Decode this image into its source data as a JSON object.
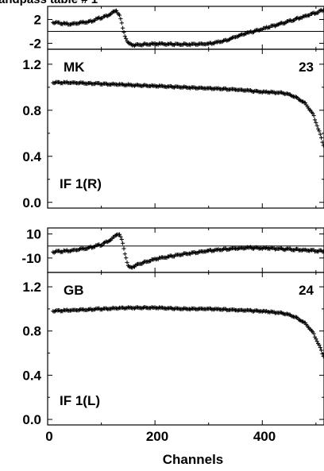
{
  "title": "andpass table # 1",
  "xlabel": "Channels",
  "x_ticks": [
    "0",
    "200",
    "400"
  ],
  "chart_data": [
    {
      "type": "scatter",
      "role": "phase",
      "xlim": [
        0,
        515
      ],
      "ylim": [
        -3,
        4.2
      ],
      "yticks": [
        {
          "value": 2,
          "label": "2"
        },
        {
          "value": -2,
          "label": "-2"
        }
      ],
      "zero_line": 0,
      "series": [
        {
          "x": [
            10,
            40,
            80,
            110,
            128,
            135,
            140,
            145,
            150,
            160,
            200,
            250,
            300,
            330,
            360,
            400,
            450,
            500,
            515
          ],
          "y": [
            1.5,
            1.2,
            1.7,
            2.6,
            3.5,
            2.5,
            0.5,
            -1.0,
            -2.0,
            -2.3,
            -2.1,
            -2.2,
            -2.1,
            -1.6,
            -0.6,
            0.4,
            1.7,
            3.1,
            3.6
          ]
        }
      ]
    },
    {
      "type": "scatter",
      "role": "amplitude",
      "xlim": [
        0,
        515
      ],
      "ylim": [
        -0.05,
        1.33
      ],
      "yticks": [
        {
          "value": 1.2,
          "label": "1.2"
        },
        {
          "value": 0.8,
          "label": "0.8"
        },
        {
          "value": 0.4,
          "label": "0.4"
        },
        {
          "value": 0.0,
          "label": "0.0"
        }
      ],
      "labels": {
        "antenna": "MK",
        "number": "23",
        "if": "IF 1(R)"
      },
      "series": [
        {
          "x": [
            10,
            50,
            100,
            150,
            200,
            250,
            300,
            350,
            400,
            440,
            460,
            480,
            495,
            505,
            515
          ],
          "y": [
            1.04,
            1.04,
            1.03,
            1.02,
            1.01,
            1.0,
            0.99,
            0.98,
            0.96,
            0.95,
            0.92,
            0.86,
            0.76,
            0.63,
            0.48
          ]
        }
      ]
    },
    {
      "type": "scatter",
      "role": "phase",
      "xlim": [
        0,
        515
      ],
      "ylim": [
        -22,
        15
      ],
      "yticks": [
        {
          "value": 10,
          "label": "10"
        },
        {
          "value": -10,
          "label": "-10"
        }
      ],
      "zero_line": 0,
      "series": [
        {
          "x": [
            10,
            40,
            70,
            100,
            120,
            130,
            135,
            140,
            145,
            150,
            155,
            170,
            200,
            250,
            300,
            350,
            380,
            420,
            460,
            515
          ],
          "y": [
            -5,
            -4,
            -2,
            1,
            6,
            10,
            9,
            2,
            -8,
            -17,
            -18,
            -15,
            -11,
            -7,
            -4,
            -2,
            -1.5,
            -2,
            -3,
            -4.5
          ]
        }
      ]
    },
    {
      "type": "scatter",
      "role": "amplitude",
      "xlim": [
        0,
        515
      ],
      "ylim": [
        -0.05,
        1.33
      ],
      "yticks": [
        {
          "value": 1.2,
          "label": "1.2"
        },
        {
          "value": 0.8,
          "label": "0.8"
        },
        {
          "value": 0.4,
          "label": "0.4"
        },
        {
          "value": 0.0,
          "label": "0.0"
        }
      ],
      "labels": {
        "antenna": "GB",
        "number": "24",
        "if": "IF 1(L)"
      },
      "series": [
        {
          "x": [
            10,
            50,
            100,
            150,
            200,
            250,
            300,
            350,
            400,
            440,
            460,
            480,
            495,
            505,
            515
          ],
          "y": [
            0.98,
            0.99,
            1.0,
            1.01,
            1.01,
            1.0,
            1.0,
            0.99,
            0.98,
            0.96,
            0.93,
            0.87,
            0.78,
            0.68,
            0.56
          ]
        }
      ]
    }
  ]
}
